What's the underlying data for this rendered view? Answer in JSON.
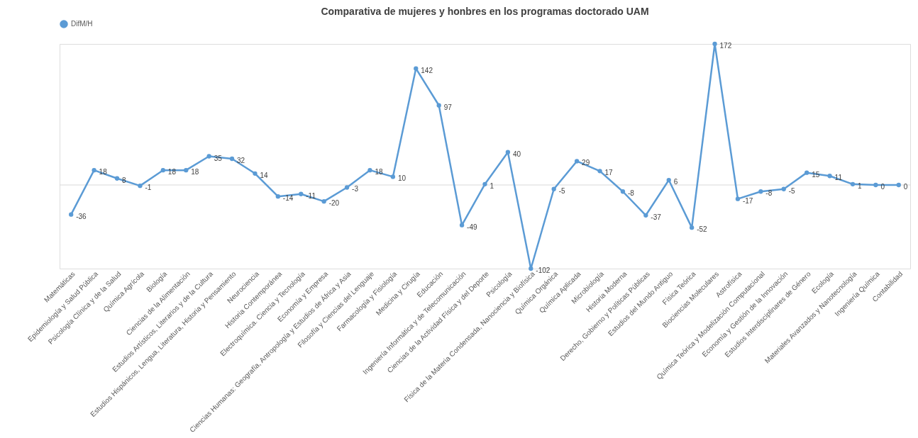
{
  "chart_data": {
    "type": "line",
    "title": "Comparativa de mujeres y honbres en los programas doctorado UAM",
    "categories": [
      "Matemáticas",
      "Epidemiología y Salud Pública",
      "Psicología Clínica y de la Salud",
      "Química Agrícola",
      "Biología",
      "Ciencias de la Alimentación",
      "Estudios Artísticos, Literarios y de la Cultura",
      "Estudios Hispánicos, Lengua, Literatura, Historia y Pensamiento",
      "Neurociencia",
      "Historia Contemporánea",
      "Electroquímica. Ciencia y Tecnología",
      "Economía y Empresa",
      "Ciencias Humanas: Geografía, Antropología y Estudios de África y Asia",
      "Filosofía y Ciencias del Lenguaje",
      "Farmacología y Fisiología",
      "Medicina y Cirugía",
      "Educación",
      "Ingeniería Informática y de Telecomunicación",
      "Ciencias de la Actividad Física y del Deporte",
      "Psicología",
      "Física de la Materia Condensada, Nanociencia y Biofísica",
      "Química Orgánica",
      "Química Aplicada",
      "Microbiología",
      "Historia Moderna",
      "Derecho, Gobierno y Políticas Públicas",
      "Estudios del Mundo Antiguo",
      "Física Teórica",
      "Biociencias Moleculares",
      "Astrofísica",
      "Química Teórica y Modelización Computacional",
      "Economía y Gestión de la Innovación",
      "Estudios Interdisciplinares de Género",
      "Ecología",
      "Materiales Avanzados y Nanotecnología",
      "Ingeniería Química",
      "Contabilidad"
    ],
    "series": [
      {
        "name": "DifM/H",
        "color": "#5b9bd5",
        "values": [
          -36,
          18,
          8,
          -1,
          18,
          18,
          35,
          32,
          14,
          -14,
          -11,
          -20,
          -3,
          18,
          10,
          142,
          97,
          -49,
          1,
          40,
          -102,
          -5,
          29,
          17,
          -8,
          -37,
          6,
          -52,
          172,
          -17,
          -8,
          -5,
          15,
          11,
          1,
          0,
          0
        ]
      }
    ],
    "ref_lines": [
      {
        "axis": "y",
        "value": 0,
        "color": "#d9d9d9"
      }
    ],
    "data_labels": true,
    "legend": "top",
    "marker": "circle",
    "grid": false
  }
}
